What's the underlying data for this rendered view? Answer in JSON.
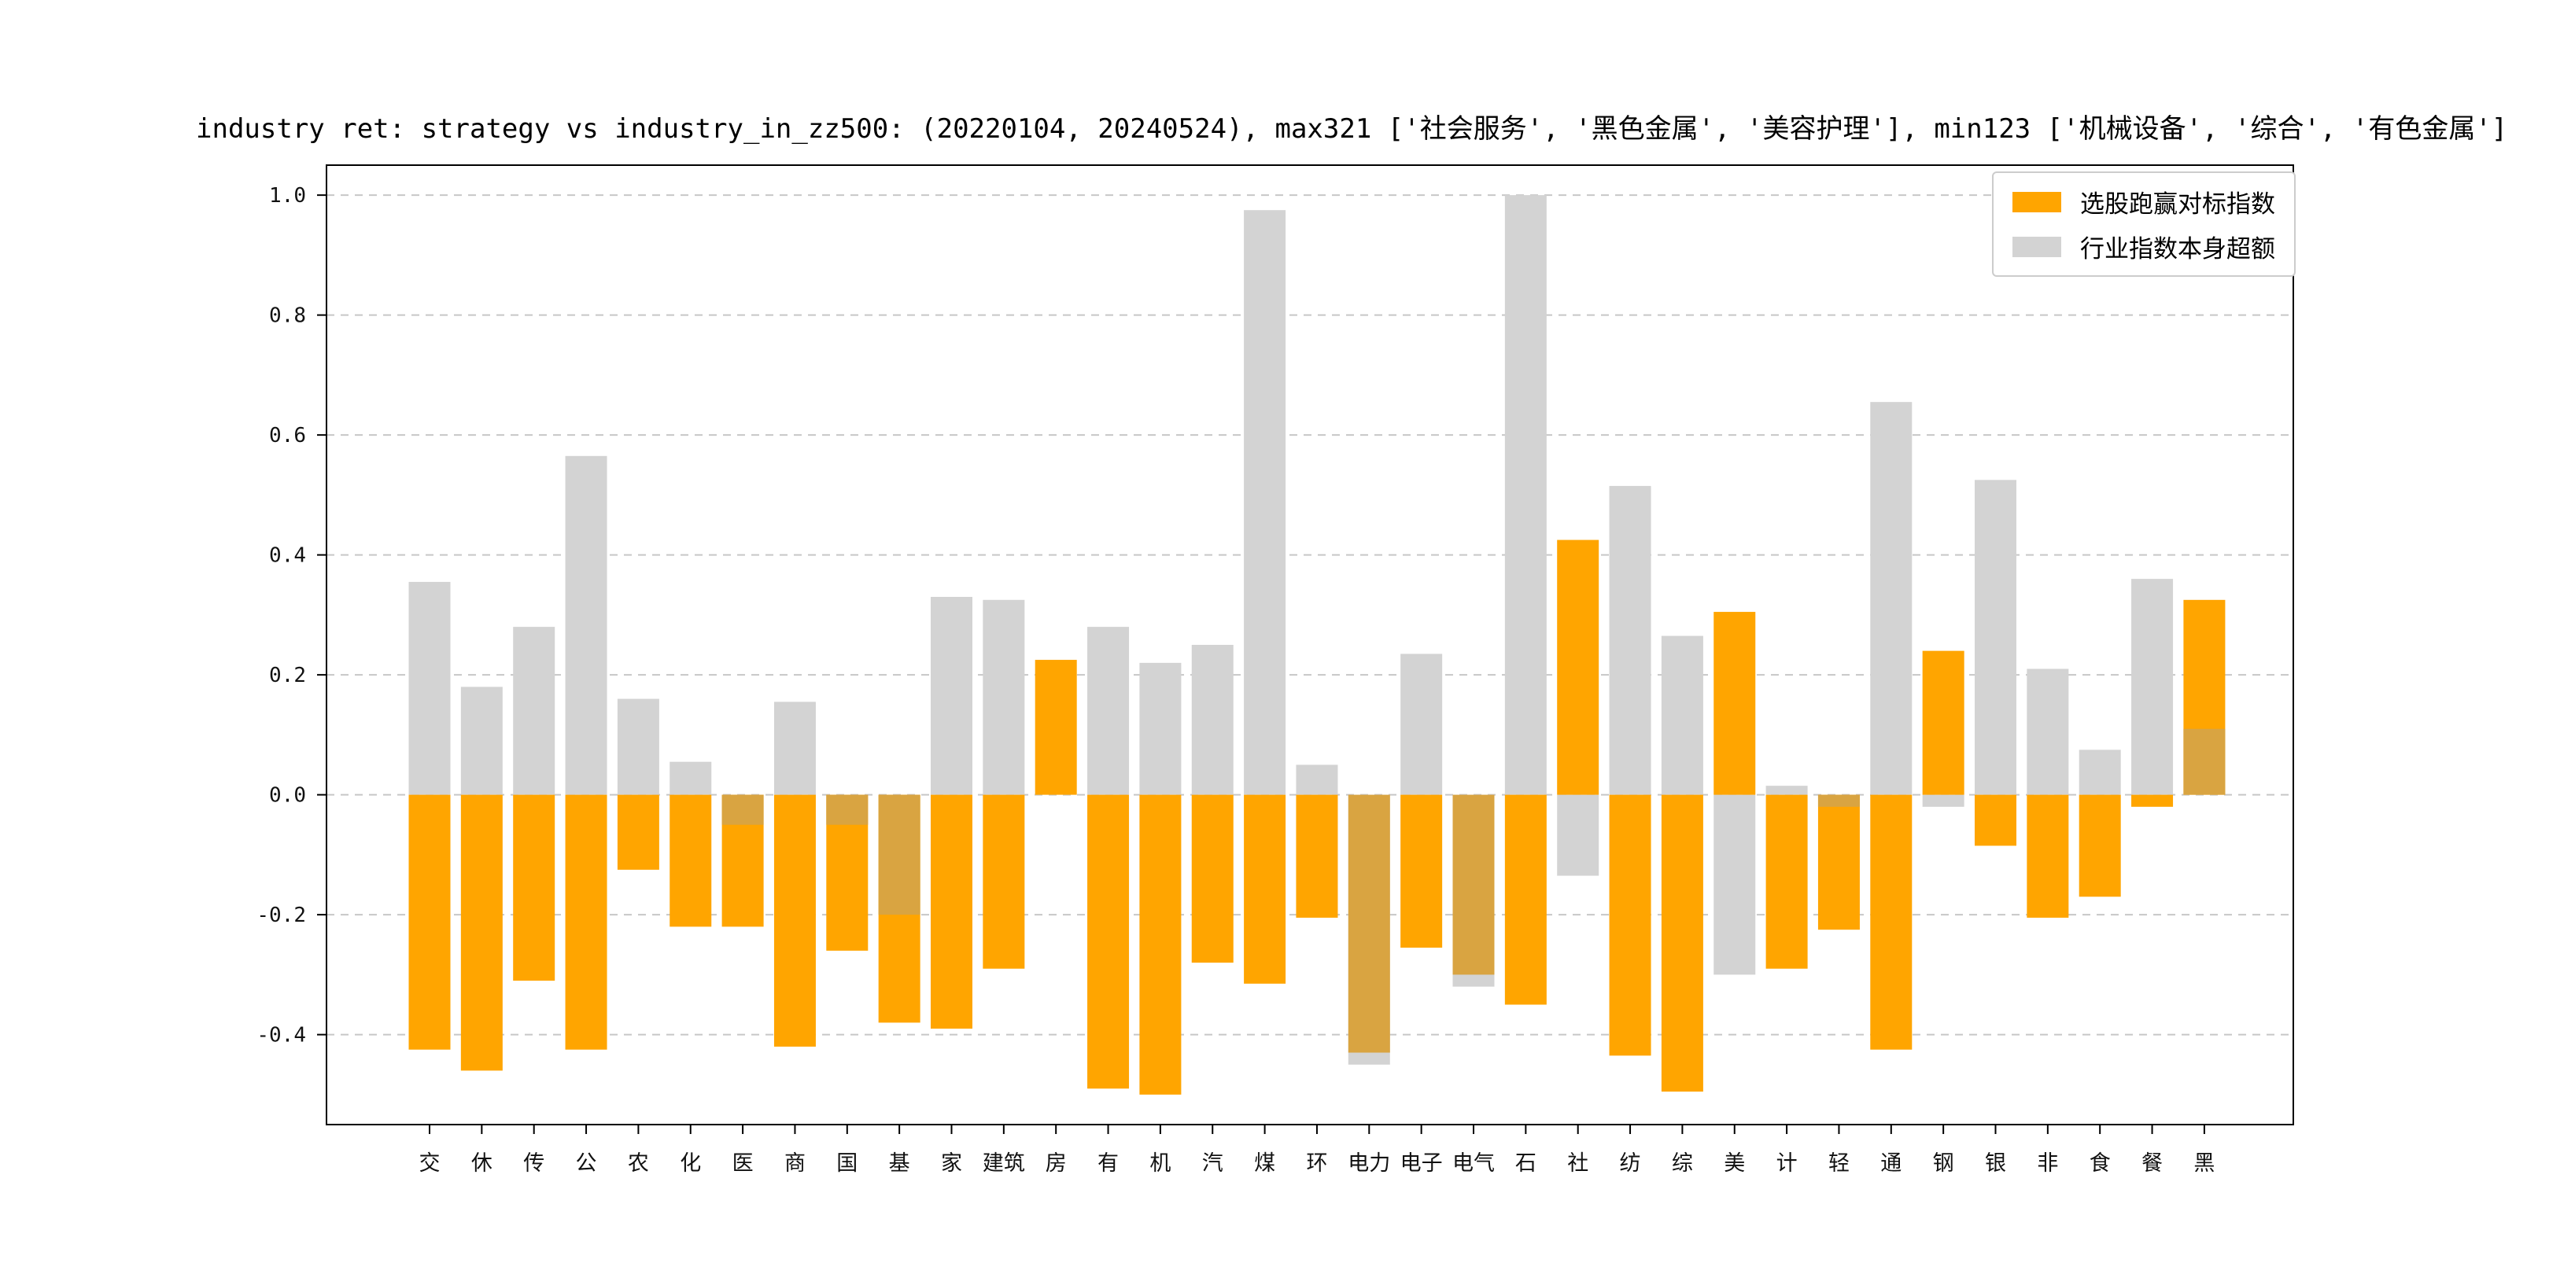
{
  "figure": {
    "background": "#ffffff",
    "axis_color": "#000000",
    "grid_color": "#c7c7c7",
    "grid_style": "dashed"
  },
  "chart_data": {
    "type": "bar",
    "title": "industry ret: strategy vs industry_in_zz500: (20220104, 20240524), max321 ['社会服务', '黑色金属', '美容护理'], min123 ['机械设备', '综合', '有色金属']",
    "categories": [
      "交",
      "休",
      "传",
      "公",
      "农",
      "化",
      "医",
      "商",
      "国",
      "基",
      "家",
      "建筑",
      "房",
      "有",
      "机",
      "汽",
      "煤",
      "环",
      "电力",
      "电子",
      "电气",
      "石",
      "社",
      "纺",
      "综",
      "美",
      "计",
      "轻",
      "通",
      "钢",
      "银",
      "非",
      "食",
      "餐",
      "黑"
    ],
    "series": [
      {
        "name": "选股跑赢对标指数",
        "color": "#FFA500",
        "values": [
          -0.425,
          -0.46,
          -0.31,
          -0.425,
          -0.125,
          -0.22,
          -0.22,
          -0.42,
          -0.26,
          -0.38,
          -0.39,
          -0.29,
          0.225,
          -0.49,
          -0.5,
          -0.28,
          -0.315,
          -0.205,
          -0.43,
          -0.255,
          -0.3,
          -0.35,
          0.425,
          -0.435,
          -0.495,
          0.305,
          -0.29,
          -0.225,
          -0.425,
          0.24,
          -0.085,
          -0.205,
          -0.17,
          -0.02,
          0.325
        ]
      },
      {
        "name": "行业指数本身超额",
        "color": "#D3D3D3",
        "values": [
          0.355,
          0.18,
          0.28,
          0.565,
          0.16,
          0.055,
          -0.05,
          0.155,
          -0.05,
          -0.2,
          0.33,
          0.325,
          0.0,
          0.28,
          0.22,
          0.25,
          0.975,
          0.05,
          -0.45,
          0.235,
          -0.32,
          1.0,
          -0.135,
          0.515,
          0.265,
          -0.3,
          0.015,
          -0.02,
          0.655,
          -0.02,
          0.525,
          0.21,
          0.075,
          0.36,
          0.11
        ]
      }
    ],
    "overlap_color": "#D9A441",
    "yticks": [
      1.0,
      0.8,
      0.6,
      0.4,
      0.2,
      0.0,
      -0.2,
      -0.4
    ],
    "ylim": [
      -0.55,
      1.05
    ],
    "grid": "horizontal dashed at every y tick",
    "legend_position": "upper right"
  }
}
